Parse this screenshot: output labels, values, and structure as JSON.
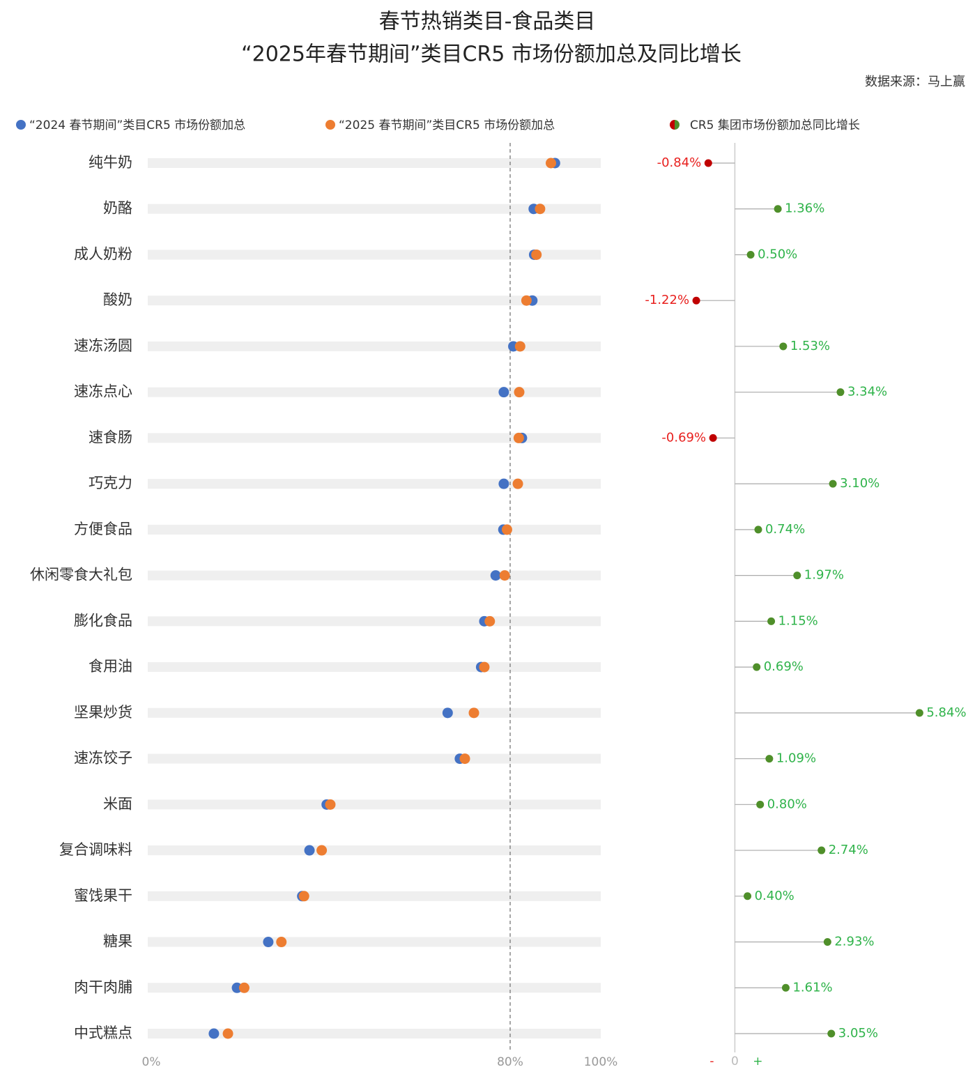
{
  "chart_data": [
    {
      "type": "dumbbell",
      "title": "春节热销类目-食品类目",
      "subtitle": "“2025年春节期间”类目CR5 市场份额加总及同比增长",
      "source": "数据来源：马上赢",
      "categories": [
        "纯牛奶",
        "奶酪",
        "成人奶粉",
        "酸奶",
        "速冻汤圆",
        "速冻点心",
        "速食肠",
        "巧克力",
        "方便食品",
        "休闲零食大礼包",
        "膨化食品",
        "食用油",
        "坚果炒货",
        "速冻饺子",
        "米面",
        "复合调味料",
        "蜜饯果干",
        "糖果",
        "肉干肉脯",
        "中式糕点"
      ],
      "series": [
        {
          "name": "“2024 春节期间”类目CR5 市场份额加总",
          "color": "#4472c4",
          "values": [
            89.9,
            85.2,
            85.3,
            84.9,
            80.7,
            78.6,
            82.6,
            78.6,
            78.5,
            76.8,
            74.3,
            73.6,
            66.2,
            68.9,
            39.5,
            35.7,
            34.1,
            26.6,
            19.7,
            14.6
          ]
        },
        {
          "name": "“2025 春节期间”类目CR5 市场份额加总",
          "color": "#ed7d31",
          "values": [
            89.0,
            86.6,
            85.8,
            83.6,
            82.2,
            82.0,
            81.9,
            81.7,
            79.3,
            78.8,
            75.5,
            74.3,
            72.0,
            70.0,
            40.3,
            38.4,
            34.5,
            29.5,
            21.3,
            17.7
          ]
        }
      ],
      "xlim": [
        0,
        100
      ],
      "xticks": [
        {
          "value": 0,
          "label": "0%"
        },
        {
          "value": 80,
          "label": "80%"
        },
        {
          "value": 100,
          "label": "100%"
        }
      ],
      "ref_line": 80
    },
    {
      "type": "lollipop",
      "name": "CR5 集团市场份额加总同比增长",
      "values": [
        -0.84,
        1.36,
        0.5,
        -1.22,
        1.53,
        3.34,
        -0.69,
        3.1,
        0.74,
        1.97,
        1.15,
        0.69,
        5.84,
        1.09,
        0.8,
        2.74,
        0.4,
        2.93,
        1.61,
        3.05
      ],
      "value_labels": [
        "-0.84%",
        "1.36%",
        "0.50%",
        "-1.22%",
        "1.53%",
        "3.34%",
        "-0.69%",
        "3.10%",
        "0.74%",
        "1.97%",
        "1.15%",
        "0.69%",
        "5.84%",
        "1.09%",
        "0.80%",
        "2.74%",
        "0.40%",
        "2.93%",
        "1.61%",
        "3.05%"
      ],
      "positive_color": "#4f8f2a",
      "negative_color": "#c00000",
      "positive_label_color": "#2fb34a",
      "negative_label_color": "#e8201e",
      "xlim": [
        -2.5,
        7
      ],
      "xticks": [
        0
      ],
      "negative_label": "-",
      "positive_label": "+"
    }
  ]
}
